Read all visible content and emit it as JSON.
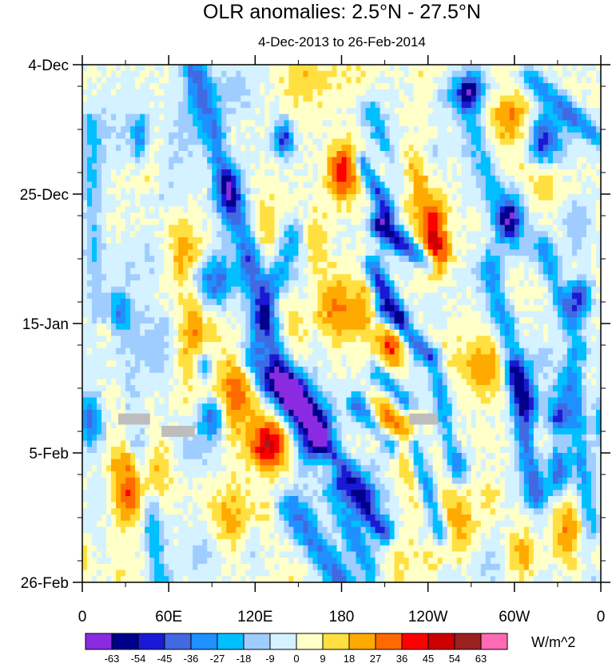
{
  "chart_data": {
    "type": "heatmap",
    "title": "OLR anomalies: 2.5°N - 27.5°N",
    "subtitle": "4-Dec-2013 to 26-Feb-2014",
    "x_tick_labels": [
      "0",
      "60E",
      "120E",
      "180",
      "120W",
      "60W",
      "0"
    ],
    "x_tick_longitudes": [
      0,
      60,
      120,
      180,
      240,
      300,
      360
    ],
    "xlim": [
      0,
      360
    ],
    "y_tick_labels": [
      "4-Dec",
      "25-Dec",
      "15-Jan",
      "5-Feb",
      "26-Feb"
    ],
    "y_tick_days": [
      0,
      21,
      42,
      63,
      84
    ],
    "ylim_days": [
      0,
      84
    ],
    "colorbar": {
      "unit_label": "W/m^2",
      "levels": [
        "-63",
        "-54",
        "-45",
        "-36",
        "-27",
        "-18",
        "-9",
        "0",
        "9",
        "18",
        "27",
        "36",
        "45",
        "54",
        "63"
      ],
      "colors": [
        "#8a2be2",
        "#00008b",
        "#1a1ad6",
        "#4169e1",
        "#1e90ff",
        "#00bfff",
        "#a0cdff",
        "#d4f2ff",
        "#ffffc8",
        "#ffe040",
        "#ffaa00",
        "#ff6a00",
        "#ff0000",
        "#cd0000",
        "#9b2020",
        "#ff6ab4"
      ]
    },
    "missing_segments": [
      {
        "lon_start": 25,
        "lon_end": 47,
        "day_start": 56.6,
        "day_end": 58.4
      },
      {
        "lon_start": 55,
        "lon_end": 78,
        "day_start": 58.6,
        "day_end": 60.4
      },
      {
        "lon_start": 227,
        "lon_end": 247,
        "day_start": 56.6,
        "day_end": 58.4
      }
    ],
    "features": [
      {
        "lon": 270,
        "day": 4,
        "value": -50,
        "wlon": 6,
        "wday": 2.0
      },
      {
        "lon": 297,
        "day": 25,
        "value": -48,
        "wlon": 6,
        "wday": 2.5
      },
      {
        "lon": 345,
        "day": 38,
        "value": -55,
        "wlon": 6,
        "wday": 2.5
      },
      {
        "lon": 140,
        "day": 12,
        "value": -50,
        "wlon": 5,
        "wday": 2.0
      },
      {
        "lon": 90,
        "day": 57,
        "value": -42,
        "wlon": 6,
        "wday": 2.5
      },
      {
        "lon": 85,
        "day": 49,
        "value": -35,
        "wlon": 5,
        "wday": 2.0
      },
      {
        "lon": 260,
        "day": 65,
        "value": -42,
        "wlon": 5,
        "wday": 2.0
      },
      {
        "lon": 330,
        "day": 57,
        "value": -38,
        "wlon": 5,
        "wday": 2.0
      },
      {
        "lon": 322,
        "day": 12,
        "value": -35,
        "wlon": 6,
        "wday": 3.0
      },
      {
        "lon": 330,
        "day": 66,
        "value": -35,
        "wlon": 6,
        "wday": 3.0
      },
      {
        "lon": 5,
        "day": 58,
        "value": -45,
        "wlon": 6,
        "wday": 3.0
      },
      {
        "lon": 40,
        "day": 12,
        "value": -32,
        "wlon": 5,
        "wday": 3.0
      },
      {
        "lon": 285,
        "day": 34,
        "value": -32,
        "wlon": 6,
        "wday": 3.0
      },
      {
        "lon": 25,
        "day": 40,
        "value": -28,
        "wlon": 5,
        "wday": 2.5
      },
      {
        "lon": 100,
        "day": 21,
        "value": -30,
        "wlon": 6,
        "wday": 3.0
      },
      {
        "lon": 95,
        "day": 35,
        "value": -28,
        "wlon": 6,
        "wday": 3.0
      },
      {
        "lon": 180,
        "day": 18,
        "value": 35,
        "wlon": 7,
        "wday": 3.0
      },
      {
        "lon": 230,
        "day": 20,
        "value": 30,
        "wlon": 7,
        "wday": 3.0
      },
      {
        "lon": 245,
        "day": 30,
        "value": 38,
        "wlon": 8,
        "wday": 3.0
      },
      {
        "lon": 215,
        "day": 45,
        "value": 38,
        "wlon": 8,
        "wday": 3.0
      },
      {
        "lon": 210,
        "day": 58,
        "value": 35,
        "wlon": 8,
        "wday": 3.0
      },
      {
        "lon": 110,
        "day": 52,
        "value": 30,
        "wlon": 10,
        "wday": 4.0
      },
      {
        "lon": 130,
        "day": 61,
        "value": 35,
        "wlon": 10,
        "wday": 3.0
      },
      {
        "lon": 175,
        "day": 40,
        "value": 30,
        "wlon": 10,
        "wday": 4.0
      },
      {
        "lon": 340,
        "day": 75,
        "value": 25,
        "wlon": 10,
        "wday": 4.0
      },
      {
        "lon": 280,
        "day": 50,
        "value": 28,
        "wlon": 10,
        "wday": 4.0
      },
      {
        "lon": 260,
        "day": 75,
        "value": 25,
        "wlon": 10,
        "wday": 4.0
      },
      {
        "lon": 30,
        "day": 68,
        "value": 25,
        "wlon": 10,
        "wday": 4.0
      },
      {
        "lon": 140,
        "day": 45,
        "value": 28,
        "wlon": 10,
        "wday": 4.0
      },
      {
        "lon": 355,
        "day": 80,
        "value": 30,
        "wlon": 6,
        "wday": 3.0
      },
      {
        "lon": 300,
        "day": 8,
        "value": 25,
        "wlon": 10,
        "wday": 4.0
      },
      {
        "lon": 70,
        "day": 30,
        "value": 22,
        "wlon": 10,
        "wday": 4.0
      },
      {
        "lon": 100,
        "day": 74,
        "value": 22,
        "wlon": 10,
        "wday": 4.0
      }
    ],
    "streaks": [
      {
        "lon_start": 77,
        "day_start": 0,
        "lon_end": 115,
        "day_end": 30,
        "value": -35,
        "width": 6
      },
      {
        "lon_start": 118,
        "day_start": 34,
        "lon_end": 158,
        "day_end": 62,
        "value": -38,
        "width": 7
      },
      {
        "lon_start": 145,
        "day_start": 28,
        "lon_end": 125,
        "day_end": 42,
        "value": -28,
        "width": 6
      },
      {
        "lon_start": 135,
        "day_start": 50,
        "lon_end": 165,
        "day_end": 58,
        "value": -34,
        "width": 6
      },
      {
        "lon_start": 118,
        "day_start": 48,
        "lon_end": 140,
        "day_end": 55,
        "value": -32,
        "width": 6
      },
      {
        "lon_start": 145,
        "day_start": 72,
        "lon_end": 180,
        "day_end": 84,
        "value": -38,
        "width": 6
      },
      {
        "lon_start": 170,
        "day_start": 68,
        "lon_end": 200,
        "day_end": 82,
        "value": -28,
        "width": 5
      },
      {
        "lon_start": 195,
        "day_start": 16,
        "lon_end": 212,
        "day_end": 24,
        "value": -48,
        "width": 4
      },
      {
        "lon_start": 205,
        "day_start": 26,
        "lon_end": 240,
        "day_end": 32,
        "value": -52,
        "width": 4
      },
      {
        "lon_start": 200,
        "day_start": 33,
        "lon_end": 222,
        "day_end": 41,
        "value": -45,
        "width": 4
      },
      {
        "lon_start": 210,
        "day_start": 40,
        "lon_end": 240,
        "day_end": 47,
        "value": -42,
        "width": 4
      },
      {
        "lon_start": 205,
        "day_start": 50,
        "lon_end": 225,
        "day_end": 55,
        "value": -36,
        "width": 4
      },
      {
        "lon_start": 190,
        "day_start": 55,
        "lon_end": 215,
        "day_end": 62,
        "value": -40,
        "width": 4
      },
      {
        "lon_start": 165,
        "day_start": 61,
        "lon_end": 200,
        "day_end": 70,
        "value": -42,
        "width": 4
      },
      {
        "lon_start": 180,
        "day_start": 68,
        "lon_end": 210,
        "day_end": 76,
        "value": -45,
        "width": 4
      },
      {
        "lon_start": 230,
        "day_start": 62,
        "lon_end": 250,
        "day_end": 76,
        "value": -34,
        "width": 4
      },
      {
        "lon_start": 245,
        "day_start": 48,
        "lon_end": 255,
        "day_end": 62,
        "value": -28,
        "width": 4
      },
      {
        "lon_start": 200,
        "day_start": 8,
        "lon_end": 225,
        "day_end": 20,
        "value": -25,
        "width": 5
      },
      {
        "lon_start": 300,
        "day_start": 50,
        "lon_end": 315,
        "day_end": 70,
        "value": -38,
        "width": 5
      },
      {
        "lon_start": 320,
        "day_start": 30,
        "lon_end": 345,
        "day_end": 46,
        "value": -32,
        "width": 5
      },
      {
        "lon_start": 290,
        "day_start": 40,
        "lon_end": 310,
        "day_end": 55,
        "value": -30,
        "width": 5
      },
      {
        "lon_start": 310,
        "day_start": 2,
        "lon_end": 358,
        "day_end": 12,
        "value": -30,
        "width": 4
      },
      {
        "lon_start": 340,
        "day_start": 50,
        "lon_end": 355,
        "day_end": 82,
        "value": -28,
        "width": 5
      },
      {
        "lon_start": 5,
        "day_start": 10,
        "lon_end": 10,
        "day_end": 40,
        "value": -20,
        "width": 5
      },
      {
        "lon_start": 40,
        "day_start": 62,
        "lon_end": 55,
        "day_end": 84,
        "value": -25,
        "width": 5
      },
      {
        "lon_start": 265,
        "day_start": 6,
        "lon_end": 290,
        "day_end": 25,
        "value": -22,
        "width": 6
      }
    ]
  }
}
